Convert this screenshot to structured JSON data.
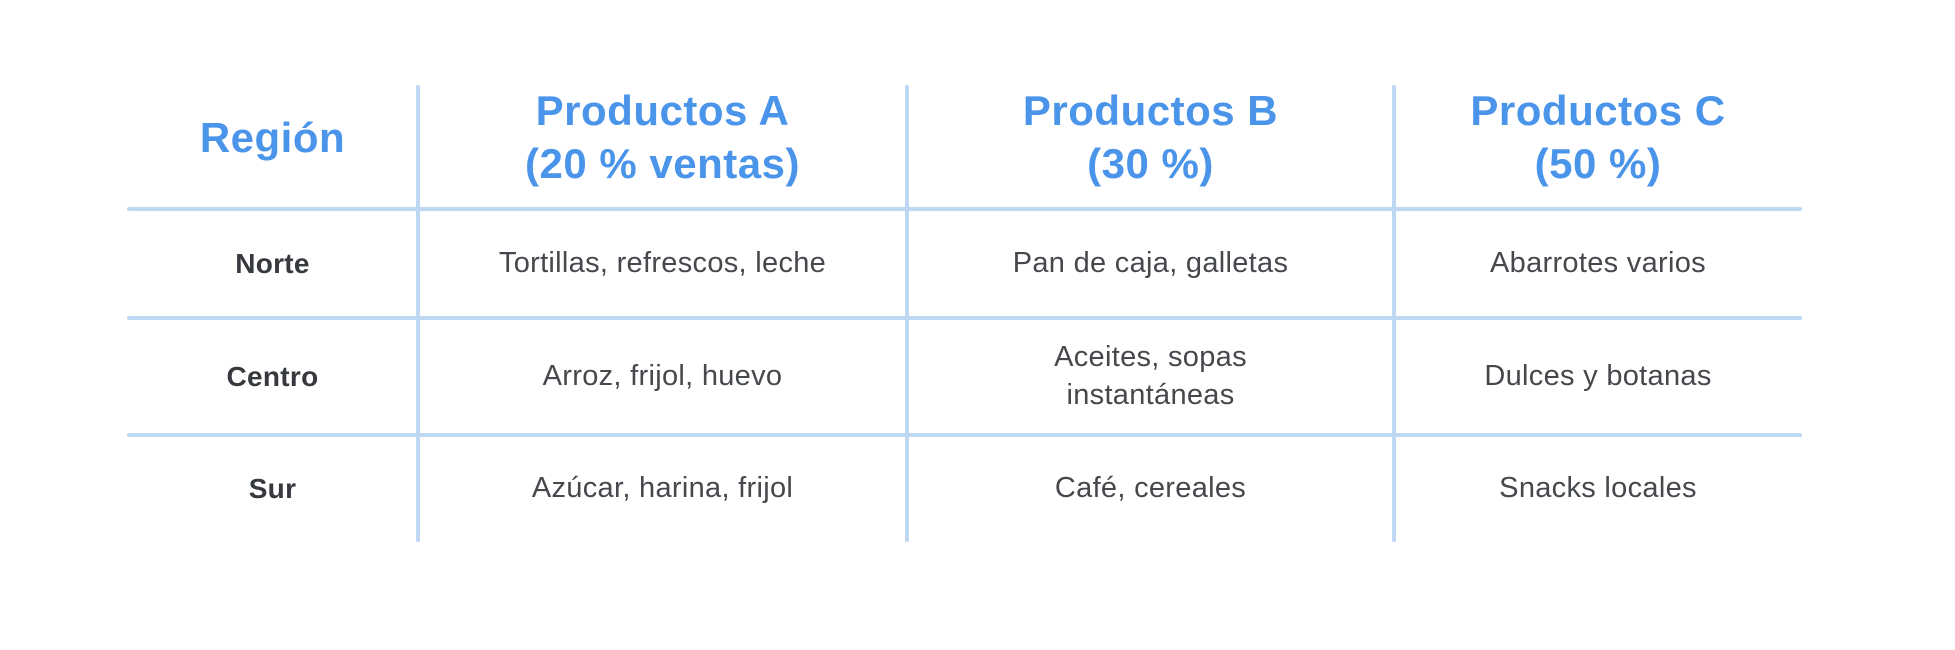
{
  "chart_data": {
    "type": "table",
    "title": "",
    "columns": [
      "Región",
      "Productos A\n(20 % ventas)",
      "Productos B\n(30 %)",
      "Productos C\n(50 %)"
    ],
    "rows": [
      [
        "Norte",
        "Tortillas, refrescos, leche",
        "Pan de caja, galletas",
        "Abarrotes varios"
      ],
      [
        "Centro",
        "Arroz, frijol, huevo",
        "Aceites, sopas\ninstantáneas",
        "Dulces y botanas"
      ],
      [
        "Sur",
        "Azúcar, harina, frijol",
        "Café, cereales",
        "Snacks locales"
      ]
    ],
    "layout": {
      "grid": "inner-lines-only",
      "header_row": true
    }
  },
  "colors": {
    "header_text": "#4a94ea",
    "grid_line": "#bed7f2",
    "body_text": "#45484c",
    "region_text": "#36393d",
    "page_bg": "#ffffff"
  }
}
